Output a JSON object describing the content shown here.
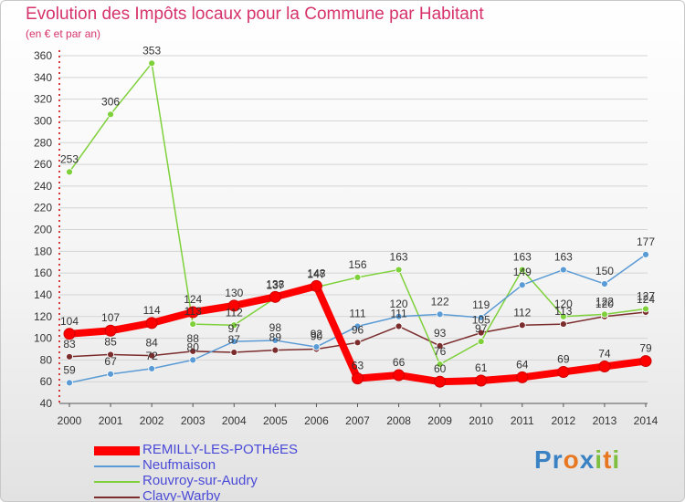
{
  "chart_data": {
    "type": "line",
    "title": "Evolution des Impôts locaux pour la Commune par Habitant",
    "subtitle": "(en € et par an)",
    "categories": [
      "2000",
      "2001",
      "2002",
      "2003",
      "2004",
      "2005",
      "2006",
      "2007",
      "2008",
      "2009",
      "2010",
      "2011",
      "2012",
      "2013",
      "2014"
    ],
    "ylim": [
      40,
      360
    ],
    "yticks": [
      40,
      60,
      80,
      100,
      120,
      140,
      160,
      180,
      200,
      220,
      240,
      260,
      280,
      300,
      320,
      340,
      360
    ],
    "series": [
      {
        "name": "REMILLY-LES-POTHéES",
        "color": "#ff0000",
        "values": [
          104,
          107,
          114,
          124,
          130,
          138,
          148,
          63,
          66,
          60,
          61,
          64,
          69,
          74,
          79
        ]
      },
      {
        "name": "Neufmaison",
        "color": "#5b9bd5",
        "values": [
          59,
          67,
          72,
          80,
          97,
          98,
          92,
          111,
          120,
          122,
          119,
          149,
          163,
          150,
          177
        ]
      },
      {
        "name": "Rouvroy-sur-Audry",
        "color": "#7fd13b",
        "values": [
          253,
          306,
          353,
          113,
          112,
          137,
          147,
          156,
          163,
          76,
          97,
          163,
          120,
          122,
          127
        ]
      },
      {
        "name": "Clavy-Warby",
        "color": "#7b2c2c",
        "values": [
          83,
          85,
          84,
          88,
          87,
          89,
          90,
          96,
          111,
          93,
          105,
          112,
          113,
          120,
          124
        ]
      }
    ]
  },
  "branding": {
    "text": "Proxiti",
    "letters": [
      "P",
      "r",
      "o",
      "x",
      "i",
      "t",
      "i"
    ],
    "colors": [
      "#3b82c4",
      "#3b82c4",
      "#e87722",
      "#3b82c4",
      "#7fbf3f",
      "#e87722",
      "#7fbf3f"
    ]
  }
}
